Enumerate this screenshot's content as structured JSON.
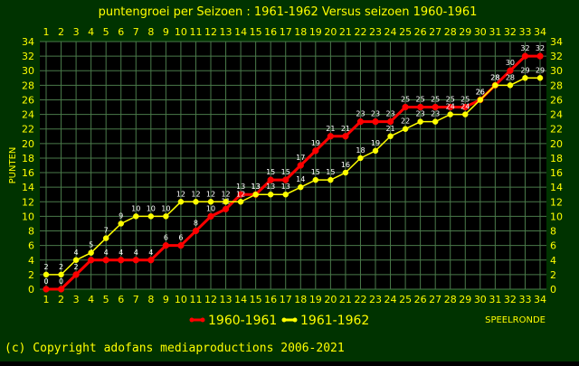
{
  "chart_data": {
    "type": "line",
    "title": "puntengroei per Seizoen : 1961-1962 Versus seizoen 1960-1961",
    "xlabel": "SPEELRONDE",
    "ylabel": "PUNTEN",
    "x": [
      1,
      2,
      3,
      4,
      5,
      6,
      7,
      8,
      9,
      10,
      11,
      12,
      13,
      14,
      15,
      16,
      17,
      18,
      19,
      20,
      21,
      22,
      23,
      24,
      25,
      26,
      27,
      28,
      29,
      30,
      31,
      32,
      33,
      34
    ],
    "xlim": [
      1,
      34
    ],
    "ylim": [
      0,
      34
    ],
    "yticks": [
      0,
      2,
      4,
      6,
      8,
      10,
      12,
      14,
      16,
      18,
      20,
      22,
      24,
      26,
      28,
      30,
      32,
      34
    ],
    "grid": true,
    "legend_position": "bottom",
    "series": [
      {
        "name": "1960-1961",
        "color": "#ff0000",
        "values": [
          0,
          0,
          2,
          4,
          4,
          4,
          4,
          4,
          6,
          6,
          8,
          10,
          11,
          13,
          13,
          15,
          15,
          17,
          19,
          21,
          21,
          23,
          23,
          23,
          25,
          25,
          25,
          25,
          25,
          26,
          28,
          30,
          32,
          32
        ]
      },
      {
        "name": "1961-1962",
        "color": "#ffff00",
        "values": [
          2,
          2,
          4,
          5,
          7,
          9,
          10,
          10,
          10,
          12,
          12,
          12,
          12,
          12,
          13,
          13,
          13,
          14,
          15,
          15,
          16,
          18,
          19,
          21,
          22,
          23,
          23,
          24,
          24,
          26,
          28,
          28,
          29,
          29
        ]
      }
    ]
  },
  "colors": {
    "background": "#003300",
    "plot_background": "#000000",
    "grid": "#4a7a4a",
    "text": "#ffff00"
  },
  "copyright": "(c) Copyright adofans mediaproductions 2006-2021"
}
